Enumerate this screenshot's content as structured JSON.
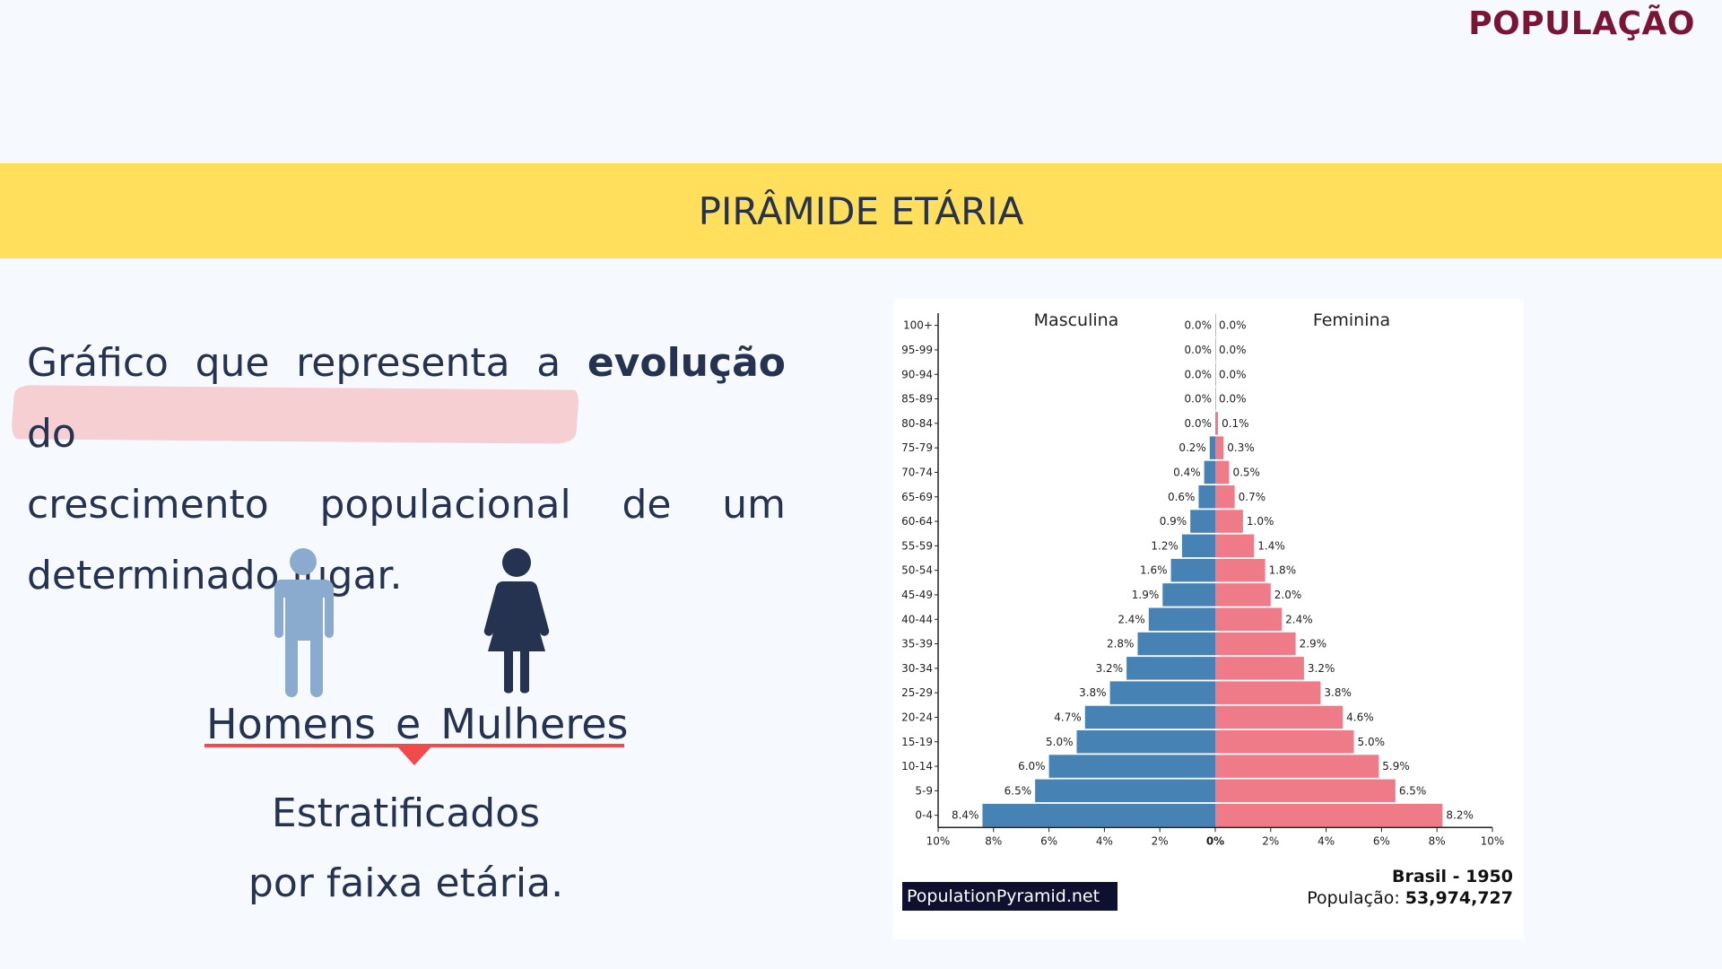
{
  "header": {
    "corner_title": "POPULAÇÃO"
  },
  "banner": {
    "title": "PIRÂMIDE ETÁRIA"
  },
  "intro": {
    "line1_a": "Gráfico que representa a",
    "line1_bold": "evolução",
    "line1_b": "do",
    "line2": "crescimento populacional de um",
    "line3": "determinado lugar."
  },
  "icons": {
    "male": "man-icon",
    "female": "woman-icon",
    "male_color": "#8aabcd",
    "female_color": "#253350"
  },
  "gender_labels": {
    "men": "Homens",
    "and": "e",
    "women": "Mulheres"
  },
  "stratified": {
    "line1": "Estratificados",
    "line2": "por faixa etária."
  },
  "colors": {
    "male_bar": "#4682b4",
    "female_bar": "#ef7b88",
    "banner": "#ffdf5b",
    "accent": "#f04a4a"
  },
  "chart_data": {
    "type": "bar",
    "orientation": "horizontal-population-pyramid",
    "categories": [
      "100+",
      "95-99",
      "90-94",
      "85-89",
      "80-84",
      "75-79",
      "70-74",
      "65-69",
      "60-64",
      "55-59",
      "50-54",
      "45-49",
      "40-44",
      "35-39",
      "30-34",
      "25-29",
      "20-24",
      "15-19",
      "10-14",
      "5-9",
      "0-4"
    ],
    "series": [
      {
        "name": "Masculina",
        "values": [
          0.0,
          0.0,
          0.0,
          0.0,
          0.0,
          0.2,
          0.4,
          0.6,
          0.9,
          1.2,
          1.6,
          1.9,
          2.4,
          2.8,
          3.2,
          3.8,
          4.7,
          5.0,
          6.0,
          6.5,
          8.4
        ]
      },
      {
        "name": "Feminina",
        "values": [
          0.0,
          0.0,
          0.0,
          0.0,
          0.1,
          0.3,
          0.5,
          0.7,
          1.0,
          1.4,
          1.8,
          2.0,
          2.4,
          2.9,
          3.2,
          3.8,
          4.6,
          5.0,
          5.9,
          6.5,
          8.2
        ]
      }
    ],
    "x_ticks": [
      "10%",
      "8%",
      "6%",
      "4%",
      "2%",
      "0%",
      "2%",
      "4%",
      "6%",
      "8%",
      "10%"
    ],
    "xlim": [
      -10,
      10
    ],
    "source_badge": "PopulationPyramid.net",
    "country_year": "Brasil - 1950",
    "population_label": "População:",
    "population_value": "53,974,727"
  }
}
